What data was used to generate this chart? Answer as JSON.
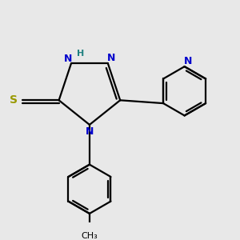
{
  "bg_color": "#e8e8e8",
  "bond_color": "#000000",
  "N_color": "#0000cc",
  "S_color": "#999900",
  "H_color": "#208080",
  "line_width": 1.6,
  "fig_size": [
    3.0,
    3.0
  ],
  "dpi": 100,
  "xlim": [
    -2.5,
    4.5
  ],
  "ylim": [
    -4.0,
    3.2
  ]
}
